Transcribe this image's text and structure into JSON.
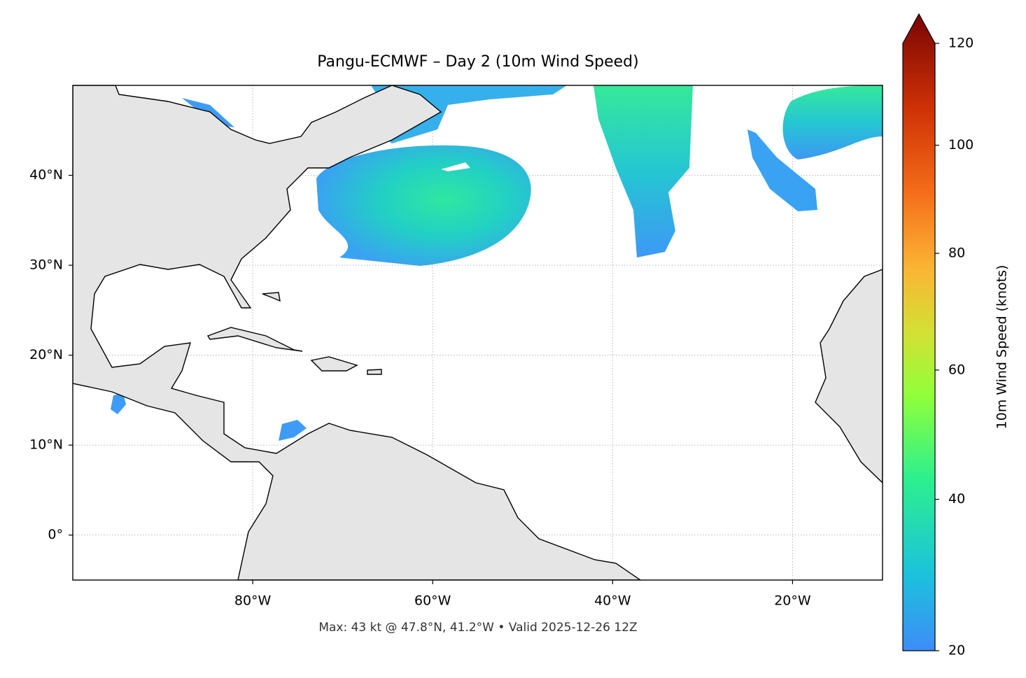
{
  "chart_data": {
    "type": "map",
    "title": "Pangu-ECMWF – Day 2 (10m Wind Speed)",
    "xlim": [
      -100,
      -10
    ],
    "ylim": [
      -5,
      50
    ],
    "xticks": [
      {
        "value": -80,
        "label": "80°W"
      },
      {
        "value": -60,
        "label": "60°W"
      },
      {
        "value": -40,
        "label": "40°W"
      },
      {
        "value": -20,
        "label": "20°W"
      }
    ],
    "yticks": [
      {
        "value": 0,
        "label": "0°"
      },
      {
        "value": 10,
        "label": "10°N"
      },
      {
        "value": 20,
        "label": "20°N"
      },
      {
        "value": 30,
        "label": "30°N"
      },
      {
        "value": 40,
        "label": "40°N"
      }
    ],
    "grid": true,
    "colorbar": {
      "label": "10m Wind Speed (knots)",
      "lim": [
        20,
        120
      ],
      "ticks": [
        20,
        40,
        60,
        80,
        100,
        120
      ],
      "scale": "power",
      "gamma": 0.7
    },
    "footer": "Max: 43 kt @ 47.8°N, 41.2°W • Valid 2025-12-26 12Z"
  }
}
